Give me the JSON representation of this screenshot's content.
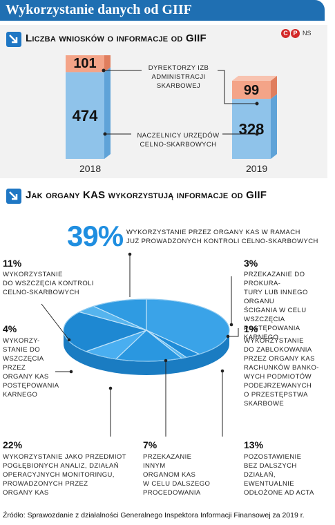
{
  "header": {
    "title": "Wykorzystanie danych od GIIF"
  },
  "badge": {
    "c": "C",
    "p": "P",
    "ns": "NS"
  },
  "section1": {
    "title": "Liczba wniosków o informacje od GIIF"
  },
  "section2": {
    "title": "Jak organy KAS wykorzystują informacje od GIIF"
  },
  "chart_data": [
    {
      "type": "bar",
      "stacked": true,
      "categories": [
        "2018",
        "2019"
      ],
      "series": [
        {
          "name": "Naczelnicy urzędów celno-skarbowych",
          "values": [
            474,
            328
          ],
          "color": "#8fc3ea"
        },
        {
          "name": "Dyrektorzy izb administracji skarbowej",
          "values": [
            101,
            99
          ],
          "color": "#f4a488"
        }
      ],
      "labels": {
        "top": [
          "101",
          "99"
        ],
        "bottom": [
          "474",
          "328"
        ],
        "dyr": [
          "Dyrektorzy izb",
          "administracji",
          "skarbowej"
        ],
        "nacz": [
          "Naczelnicy urzędów",
          "celno-skarbowych"
        ]
      }
    },
    {
      "type": "pie",
      "slices": [
        {
          "label": "Wykorzystanie przez organy KAS w ramach już prowadzonych kontroli celno-skarbowych",
          "value": 39,
          "pct": "39%"
        },
        {
          "label": "Przekazanie do prokuratury lub innego organu ścigania w celu wszczęcia postępowania karnego",
          "value": 3,
          "pct": "3%"
        },
        {
          "label": "Wykorzystanie do zablokowania przez organy KAS rachunków bankowych podmiotów podejrzewanych o przestępstwa skarbowe",
          "value": 1,
          "pct": "1%"
        },
        {
          "label": "Pozostawienie bez dalszych działań, ewentualnie odłożone ad acta",
          "value": 13,
          "pct": "13%"
        },
        {
          "label": "Przekazanie innym organom KAS w celu dalszego procedowania",
          "value": 7,
          "pct": "7%"
        },
        {
          "label": "Wykorzystanie jako przedmiot pogłębionych analiz, działań operacyjnych monitoringu, prowadzonych przez organy KAS",
          "value": 22,
          "pct": "22%"
        },
        {
          "label": "Wykorzystanie do wszczęcia przez organy KAS postępowania karnego",
          "value": 4,
          "pct": "4%"
        },
        {
          "label": "Wykorzystanie do wszczęcia kontroli celno-skarbowych",
          "value": 11,
          "pct": "11%"
        }
      ],
      "texts": {
        "t39": [
          "Wykorzystanie przez organy KAS w ramach",
          "już prowadzonych kontroli celno-skarbowych"
        ],
        "t11": [
          "Wykorzystanie",
          "do wszczęcia kontroli",
          "celno-skarbowych"
        ],
        "t3": [
          "Przekazanie do prokura-",
          "tury lub innego organu",
          "ścigania w celu wszczęcia",
          "postępowania karnego"
        ],
        "t4": [
          "Wykorzy-",
          "stanie do",
          "wszczęcia",
          "przez",
          "organy KAS",
          "postępowania",
          "karnego"
        ],
        "t1": [
          "Wykorzystanie",
          "do zablokowania",
          "przez organy KAS",
          "rachunków banko-",
          "wych podmiotów",
          "podejrzewanych",
          "o przestępstwa",
          "skarbowe"
        ],
        "t22": [
          "Wykorzystanie jako przedmiot",
          "pogłębionych analiz, działań",
          "operacyjnych monitoringu,",
          "prowadzonych przez",
          "organy KAS"
        ],
        "t7": [
          "Przekazanie",
          "innym",
          "organom KAS",
          "w celu dalszego",
          "procedowania"
        ],
        "t13": [
          "Pozostawienie",
          "bez dalszych",
          "działań,",
          "ewentualnie",
          "odłożone ad acta"
        ]
      }
    }
  ],
  "source": "Źródło: Sprawozdanie z działalności Generalnego Inspektora Informacji Finansowej za 2019 r."
}
